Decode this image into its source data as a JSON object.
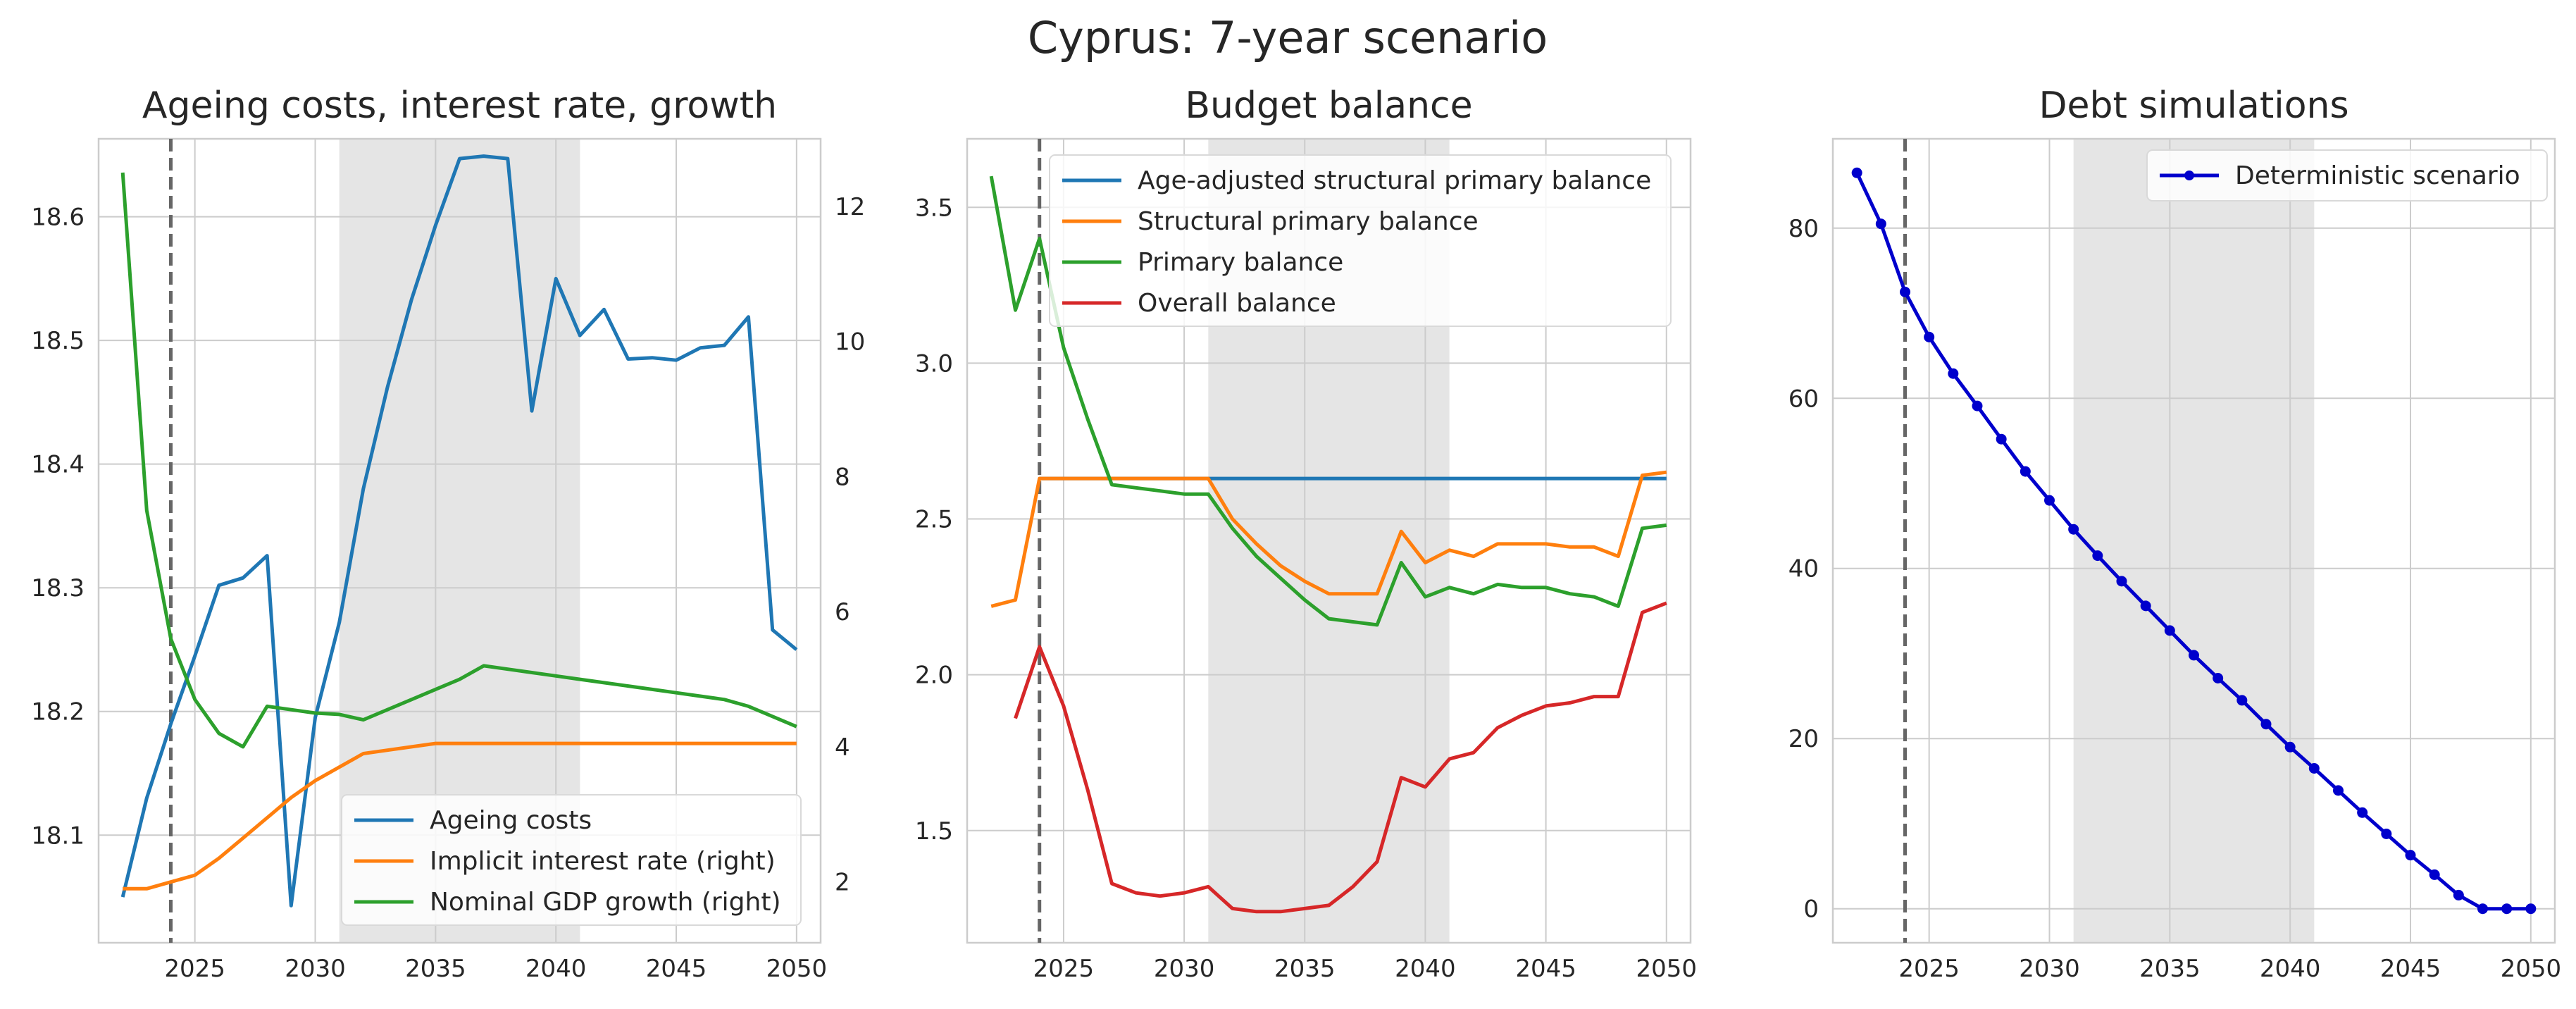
{
  "figure_title": "Cyprus: 7-year scenario",
  "chart_data": [
    {
      "type": "line",
      "title": "Ageing costs, interest rate, growth",
      "xlabel": "",
      "ylabel": "",
      "x": [
        2022,
        2023,
        2024,
        2025,
        2026,
        2027,
        2028,
        2029,
        2030,
        2031,
        2032,
        2033,
        2034,
        2035,
        2036,
        2037,
        2038,
        2039,
        2040,
        2041,
        2042,
        2043,
        2044,
        2045,
        2046,
        2047,
        2048,
        2049,
        2050
      ],
      "xlim": [
        2021.0,
        2051.0
      ],
      "ylim": [
        18.013,
        18.663
      ],
      "ylim_right": [
        1.1,
        13.0
      ],
      "xticks": [
        2025,
        2030,
        2035,
        2040,
        2045,
        2050
      ],
      "yticks": [
        18.1,
        18.2,
        18.3,
        18.4,
        18.5,
        18.6
      ],
      "yticks_right": [
        2,
        4,
        6,
        8,
        10,
        12
      ],
      "shaded_xrange": [
        2031,
        2041
      ],
      "vline_x": 2024,
      "grid": true,
      "legend_position": "lower right",
      "series": [
        {
          "name": "Ageing costs",
          "axis": "left",
          "color": "#1f77b4",
          "values": [
            18.05,
            18.13,
            18.19,
            18.245,
            18.302,
            18.308,
            18.326,
            18.043,
            18.195,
            18.272,
            18.38,
            18.462,
            18.533,
            18.593,
            18.647,
            18.649,
            18.647,
            18.443,
            18.55,
            18.504,
            18.525,
            18.485,
            18.486,
            18.484,
            18.494,
            18.496,
            18.519,
            18.266,
            18.25
          ]
        },
        {
          "name": "Implicit interest rate (right)",
          "axis": "right",
          "color": "#ff7f0e",
          "values": [
            1.9,
            1.9,
            2.0,
            2.1,
            2.35,
            2.65,
            2.95,
            3.25,
            3.5,
            3.7,
            3.9,
            3.95,
            4.0,
            4.05,
            4.05,
            4.05,
            4.05,
            4.05,
            4.05,
            4.05,
            4.05,
            4.05,
            4.05,
            4.05,
            4.05,
            4.05,
            4.05,
            4.05,
            4.05
          ]
        },
        {
          "name": "Nominal GDP growth (right)",
          "axis": "right",
          "color": "#2ca02c",
          "values": [
            12.5,
            7.5,
            5.6,
            4.7,
            4.2,
            4.0,
            4.6,
            4.55,
            4.5,
            4.48,
            4.4,
            4.55,
            4.7,
            4.85,
            5.0,
            5.2,
            5.15,
            5.1,
            5.05,
            5.0,
            4.95,
            4.9,
            4.85,
            4.8,
            4.75,
            4.7,
            4.6,
            4.45,
            4.3
          ]
        }
      ]
    },
    {
      "type": "line",
      "title": "Budget balance",
      "xlabel": "",
      "ylabel": "",
      "x": [
        2022,
        2023,
        2024,
        2025,
        2026,
        2027,
        2028,
        2029,
        2030,
        2031,
        2032,
        2033,
        2034,
        2035,
        2036,
        2037,
        2038,
        2039,
        2040,
        2041,
        2042,
        2043,
        2044,
        2045,
        2046,
        2047,
        2048,
        2049,
        2050
      ],
      "xlim": [
        2021.0,
        2051.0
      ],
      "ylim": [
        1.14,
        3.72
      ],
      "xticks": [
        2025,
        2030,
        2035,
        2040,
        2045,
        2050
      ],
      "yticks": [
        1.5,
        2.0,
        2.5,
        3.0,
        3.5
      ],
      "shaded_xrange": [
        2031,
        2041
      ],
      "vline_x": 2024,
      "grid": true,
      "legend_position": "upper right",
      "series": [
        {
          "name": "Age-adjusted structural primary balance",
          "color": "#1f77b4",
          "values": [
            null,
            null,
            2.63,
            2.63,
            2.63,
            2.63,
            2.63,
            2.63,
            2.63,
            2.63,
            2.63,
            2.63,
            2.63,
            2.63,
            2.63,
            2.63,
            2.63,
            2.63,
            2.63,
            2.63,
            2.63,
            2.63,
            2.63,
            2.63,
            2.63,
            2.63,
            2.63,
            2.63,
            2.63
          ]
        },
        {
          "name": "Structural primary balance",
          "color": "#ff7f0e",
          "values": [
            2.22,
            2.24,
            2.63,
            2.63,
            2.63,
            2.63,
            2.63,
            2.63,
            2.63,
            2.63,
            2.5,
            2.42,
            2.35,
            2.3,
            2.26,
            2.26,
            2.26,
            2.46,
            2.36,
            2.4,
            2.38,
            2.42,
            2.42,
            2.42,
            2.41,
            2.41,
            2.38,
            2.64,
            2.65
          ]
        },
        {
          "name": "Primary balance",
          "color": "#2ca02c",
          "values": [
            3.6,
            3.17,
            3.4,
            3.05,
            2.82,
            2.61,
            2.6,
            2.59,
            2.58,
            2.58,
            2.47,
            2.38,
            2.31,
            2.24,
            2.18,
            2.17,
            2.16,
            2.36,
            2.25,
            2.28,
            2.26,
            2.29,
            2.28,
            2.28,
            2.26,
            2.25,
            2.22,
            2.47,
            2.48
          ]
        },
        {
          "name": "Overall balance",
          "color": "#d62728",
          "values": [
            null,
            1.86,
            2.09,
            1.9,
            1.63,
            1.33,
            1.3,
            1.29,
            1.3,
            1.32,
            1.25,
            1.24,
            1.24,
            1.25,
            1.26,
            1.32,
            1.4,
            1.67,
            1.64,
            1.73,
            1.75,
            1.83,
            1.87,
            1.9,
            1.91,
            1.93,
            1.93,
            2.2,
            2.23
          ]
        }
      ]
    },
    {
      "type": "line",
      "title": "Debt simulations",
      "xlabel": "",
      "ylabel": "",
      "x": [
        2022,
        2023,
        2024,
        2025,
        2026,
        2027,
        2028,
        2029,
        2030,
        2031,
        2032,
        2033,
        2034,
        2035,
        2036,
        2037,
        2038,
        2039,
        2040,
        2041,
        2042,
        2043,
        2044,
        2045,
        2046,
        2047,
        2048,
        2049,
        2050
      ],
      "xlim": [
        2021.0,
        2051.0
      ],
      "ylim": [
        -4.0,
        90.5
      ],
      "xticks": [
        2025,
        2030,
        2035,
        2040,
        2045,
        2050
      ],
      "yticks": [
        0,
        20,
        40,
        60,
        80
      ],
      "shaded_xrange": [
        2031,
        2041
      ],
      "vline_x": 2024,
      "grid": true,
      "legend_position": "upper right",
      "series": [
        {
          "name": "Deterministic scenario",
          "color": "#0000cc",
          "markers": true,
          "values": [
            86.5,
            80.5,
            72.5,
            67.2,
            62.9,
            59.1,
            55.2,
            51.4,
            48.0,
            44.6,
            41.5,
            38.5,
            35.6,
            32.7,
            29.8,
            27.1,
            24.5,
            21.7,
            19.0,
            16.5,
            13.9,
            11.3,
            8.8,
            6.3,
            4.0,
            1.6,
            0.0,
            0.0,
            0.0
          ]
        }
      ]
    }
  ]
}
